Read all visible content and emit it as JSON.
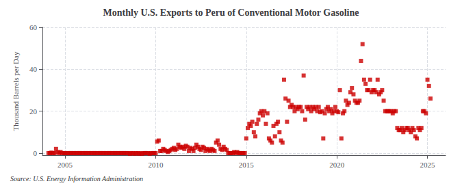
{
  "chart_data": {
    "type": "scatter",
    "title": "Monthly U.S. Exports to Peru of Conventional Motor Gasoline",
    "ylabel": "Thousand Barrels per Day",
    "annotations": [
      "Source: U.S. Energy Information Administration"
    ],
    "color": "#cc0000",
    "marker": "square",
    "grid": true,
    "xlim": [
      2003.75,
      2026.0
    ],
    "ylim": [
      -1,
      60
    ],
    "xticks": [
      2005,
      2010,
      2015,
      2020,
      2025
    ],
    "yticks": [
      0,
      20,
      40,
      60
    ],
    "x": [
      2004.083,
      2004.167,
      2004.25,
      2004.333,
      2004.417,
      2004.5,
      2004.583,
      2004.667,
      2004.75,
      2004.833,
      2004.917,
      2005.0,
      2005.083,
      2005.167,
      2005.25,
      2005.333,
      2005.417,
      2005.5,
      2005.583,
      2005.667,
      2005.75,
      2005.833,
      2005.917,
      2006.0,
      2006.083,
      2006.167,
      2006.25,
      2006.333,
      2006.417,
      2006.5,
      2006.583,
      2006.667,
      2006.75,
      2006.833,
      2006.917,
      2007.0,
      2007.083,
      2007.167,
      2007.25,
      2007.333,
      2007.417,
      2007.5,
      2007.583,
      2007.667,
      2007.75,
      2007.833,
      2007.917,
      2008.0,
      2008.083,
      2008.167,
      2008.25,
      2008.333,
      2008.417,
      2008.5,
      2008.583,
      2008.667,
      2008.75,
      2008.833,
      2008.917,
      2009.0,
      2009.083,
      2009.167,
      2009.25,
      2009.333,
      2009.417,
      2009.5,
      2009.583,
      2009.667,
      2009.75,
      2009.833,
      2009.917,
      2010.0,
      2010.083,
      2010.167,
      2010.25,
      2010.333,
      2010.417,
      2010.5,
      2010.583,
      2010.667,
      2010.75,
      2010.833,
      2010.917,
      2011.0,
      2011.083,
      2011.167,
      2011.25,
      2011.333,
      2011.417,
      2011.5,
      2011.583,
      2011.667,
      2011.75,
      2011.833,
      2011.917,
      2012.0,
      2012.083,
      2012.167,
      2012.25,
      2012.333,
      2012.417,
      2012.5,
      2012.583,
      2012.667,
      2012.75,
      2012.833,
      2012.917,
      2013.0,
      2013.083,
      2013.167,
      2013.25,
      2013.333,
      2013.417,
      2013.5,
      2013.583,
      2013.667,
      2013.75,
      2013.833,
      2013.917,
      2014.0,
      2014.083,
      2014.167,
      2014.25,
      2014.333,
      2014.417,
      2014.5,
      2014.583,
      2014.667,
      2014.75,
      2014.833,
      2014.917,
      2015.0,
      2015.083,
      2015.167,
      2015.25,
      2015.333,
      2015.417,
      2015.5,
      2015.583,
      2015.667,
      2015.75,
      2015.833,
      2015.917,
      2016.0,
      2016.083,
      2016.167,
      2016.25,
      2016.333,
      2016.417,
      2016.5,
      2016.583,
      2016.667,
      2016.75,
      2016.833,
      2016.917,
      2017.0,
      2017.083,
      2017.167,
      2017.25,
      2017.333,
      2017.417,
      2017.5,
      2017.583,
      2017.667,
      2017.75,
      2017.833,
      2017.917,
      2018.0,
      2018.083,
      2018.167,
      2018.25,
      2018.333,
      2018.417,
      2018.5,
      2018.583,
      2018.667,
      2018.75,
      2018.833,
      2018.917,
      2019.0,
      2019.083,
      2019.167,
      2019.25,
      2019.333,
      2019.417,
      2019.5,
      2019.583,
      2019.667,
      2019.75,
      2019.833,
      2019.917,
      2020.0,
      2020.083,
      2020.167,
      2020.25,
      2020.333,
      2020.417,
      2020.5,
      2020.583,
      2020.667,
      2020.75,
      2020.833,
      2020.917,
      2021.0,
      2021.083,
      2021.167,
      2021.25,
      2021.333,
      2021.417,
      2021.5,
      2021.583,
      2021.667,
      2021.75,
      2021.833,
      2021.917,
      2022.0,
      2022.083,
      2022.167,
      2022.25,
      2022.333,
      2022.417,
      2022.5,
      2022.583,
      2022.667,
      2022.75,
      2022.833,
      2022.917,
      2023.0,
      2023.083,
      2023.167,
      2023.25,
      2023.333,
      2023.417,
      2023.5,
      2023.583,
      2023.667,
      2023.75,
      2023.833,
      2023.917,
      2024.0,
      2024.083,
      2024.167,
      2024.25,
      2024.333,
      2024.417,
      2024.5,
      2024.583,
      2024.667,
      2024.75,
      2024.833,
      2024.917,
      2025.0,
      2025.083,
      2025.167
    ],
    "values": [
      0.0,
      0.0,
      0.2,
      0.0,
      0.0,
      2.0,
      0.5,
      0.0,
      0.5,
      0.0,
      0.0,
      0.0,
      0.0,
      0.0,
      0.0,
      0.0,
      0.0,
      0.0,
      0.0,
      0.0,
      0.0,
      0.0,
      0.0,
      0.0,
      0.0,
      0.0,
      0.0,
      0.0,
      0.0,
      0.0,
      0.0,
      0.0,
      0.0,
      0.0,
      0.0,
      0.0,
      0.0,
      0.0,
      0.0,
      0.0,
      0.0,
      0.0,
      0.0,
      0.0,
      0.0,
      0.0,
      0.0,
      0.0,
      0.0,
      0.0,
      0.0,
      0.0,
      0.0,
      0.0,
      -0.3,
      0.0,
      0.0,
      -0.3,
      0.0,
      0.0,
      -0.3,
      0.0,
      -0.3,
      0.0,
      0.0,
      0.0,
      0.0,
      -0.3,
      0.0,
      0.0,
      0.0,
      0.0,
      5.5,
      6.0,
      1.0,
      1.0,
      2.0,
      1.5,
      1.0,
      0.5,
      1.0,
      1.5,
      2.0,
      2.5,
      1.5,
      2.0,
      4.0,
      3.0,
      2.5,
      3.0,
      2.0,
      3.5,
      3.0,
      1.0,
      2.5,
      2.0,
      1.0,
      2.5,
      4.0,
      3.0,
      2.0,
      1.5,
      3.0,
      2.5,
      1.0,
      2.0,
      1.5,
      1.0,
      2.0,
      1.5,
      1.0,
      5.0,
      6.0,
      4.0,
      2.0,
      1.5,
      3.0,
      2.0,
      1.5,
      0.0,
      0.0,
      0.0,
      0.0,
      0.5,
      0.0,
      0.5,
      0.0,
      0.0,
      0.0,
      0.0,
      0.0,
      7.0,
      12.0,
      14.0,
      13.0,
      15.0,
      10.0,
      8.0,
      14.0,
      16.0,
      19.0,
      20.0,
      18.0,
      20.0,
      14.0,
      19.0,
      7.0,
      6.0,
      5.0,
      13.0,
      8.0,
      14.0,
      15.0,
      10.0,
      6.0,
      5.0,
      35.0,
      26.0,
      15.0,
      25.0,
      22.0,
      23.0,
      22.0,
      20.0,
      22.0,
      21.0,
      22.0,
      22.0,
      20.0,
      37.0,
      16.0,
      22.0,
      21.0,
      22.0,
      20.0,
      22.0,
      21.0,
      22.0,
      20.0,
      22.0,
      19.5,
      20.0,
      7.0,
      19.0,
      21.0,
      22.0,
      20.0,
      21.0,
      19.0,
      20.0,
      22.0,
      20.0,
      19.5,
      30.0,
      7.0,
      19.0,
      20.0,
      25.0,
      23.0,
      24.0,
      29.0,
      31.0,
      28.0,
      25.0,
      24.0,
      24.0,
      25.0,
      44.0,
      52.0,
      35.0,
      33.0,
      30.0,
      30.0,
      35.0,
      29.0,
      30.0,
      30.0,
      29.0,
      35.0,
      28.0,
      29.0,
      30.0,
      25.0,
      20.0,
      20.0,
      20.0,
      20.0,
      20.0,
      19.0,
      20.0,
      20.0,
      12.0,
      11.0,
      11.0,
      12.0,
      10.0,
      11.0,
      12.0,
      12.0,
      11.0,
      10.0,
      12.0,
      11.0,
      8.0,
      7.0,
      12.0,
      11.0,
      12.0,
      20.0,
      20.0,
      19.0,
      35.0,
      32.0,
      26.0
    ]
  }
}
